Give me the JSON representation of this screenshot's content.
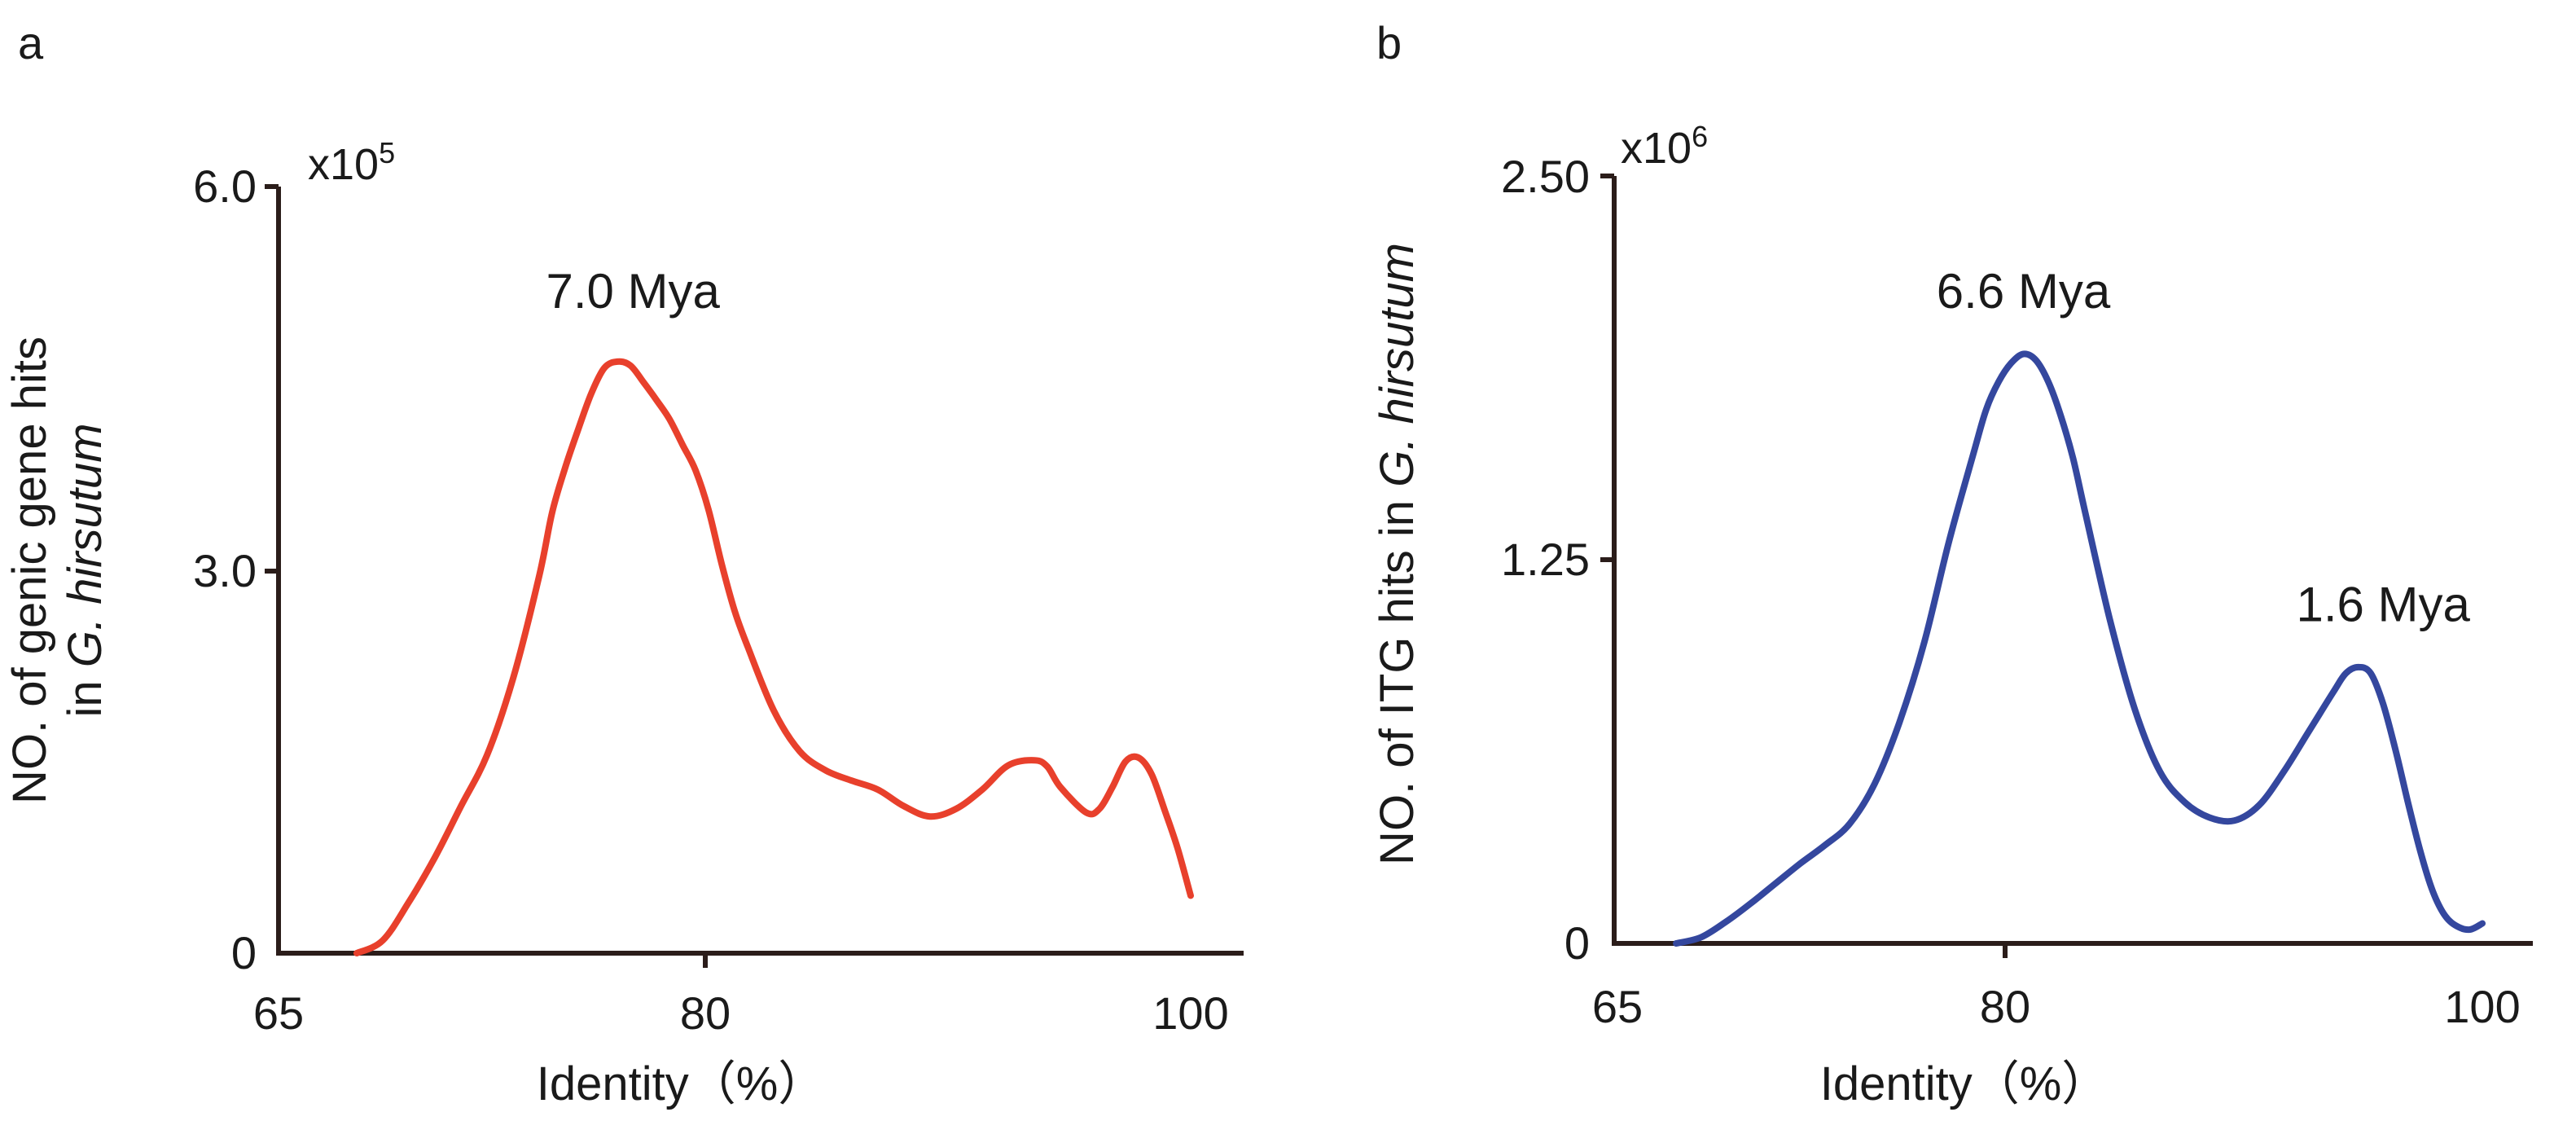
{
  "chart_data": [
    {
      "panel": "a",
      "type": "line",
      "color": "#e8402c",
      "xlabel": "Identity（%）",
      "ylabel": "NO. of  genic gene hits",
      "ylabel_line2_prefix": "in ",
      "ylabel_line2_italic": "G. hirsutum",
      "scale_base": "x10",
      "scale_exp": "5",
      "xlim": [
        65,
        100
      ],
      "ylim": [
        0,
        600000
      ],
      "xticks": [
        {
          "value": 65,
          "label": "65"
        },
        {
          "value": 80,
          "label": "80"
        },
        {
          "value": 100,
          "label": "100"
        }
      ],
      "yticks": [
        {
          "value": 0,
          "label": "0"
        },
        {
          "value": 300000,
          "label": "3.0"
        },
        {
          "value": 600000,
          "label": "6.0"
        }
      ],
      "annotations": [
        {
          "text": "7.0 Mya",
          "x": 78.6,
          "y": 505000
        }
      ],
      "series": [
        {
          "x": [
            68.0,
            69.0,
            70.0,
            71.0,
            72.0,
            73.0,
            74.0,
            75.0,
            75.5,
            76.0,
            76.5,
            77.0,
            77.5,
            78.0,
            78.5,
            79.0,
            79.5,
            80.0,
            80.5,
            81.0,
            81.5,
            82.0,
            82.5,
            83.0,
            84.0,
            85.0,
            86.0,
            87.0,
            88.0,
            89.0,
            90.0,
            91.0,
            92.0,
            93.0,
            94.0,
            94.5,
            95.0,
            96.0,
            96.5,
            97.0,
            97.5,
            98.0,
            98.5,
            99.0,
            99.5,
            100.0
          ],
          "y": [
            0,
            10000,
            40000,
            75000,
            115000,
            155000,
            215000,
            295000,
            345000,
            380000,
            410000,
            438000,
            458000,
            463000,
            460000,
            447000,
            433000,
            418000,
            398000,
            378000,
            347000,
            305000,
            268000,
            240000,
            190000,
            158000,
            143000,
            135000,
            128000,
            115000,
            107000,
            113000,
            128000,
            147000,
            151000,
            146000,
            130000,
            110000,
            113000,
            130000,
            150000,
            153000,
            140000,
            112000,
            82000,
            45000
          ]
        }
      ]
    },
    {
      "panel": "b",
      "type": "line",
      "color": "#34479e",
      "xlabel": "Identity（%）",
      "ylabel_prefix": "NO. of  ITG hits in ",
      "ylabel_italic": "G. hirsutum",
      "scale_base": "x10",
      "scale_exp": "6",
      "xlim": [
        65,
        100
      ],
      "ylim": [
        0,
        2500000
      ],
      "xticks": [
        {
          "value": 65,
          "label": "65"
        },
        {
          "value": 80,
          "label": "80"
        },
        {
          "value": 100,
          "label": "100"
        }
      ],
      "yticks": [
        {
          "value": 0,
          "label": "0"
        },
        {
          "value": 1250000,
          "label": "1.25"
        },
        {
          "value": 2500000,
          "label": "2.50"
        }
      ],
      "annotations": [
        {
          "text": "6.6 Mya",
          "x": 81.5,
          "y": 2070000
        },
        {
          "text": "1.6 Mya",
          "x": 96.0,
          "y": 1050000
        }
      ],
      "series": [
        {
          "x": [
            67.5,
            68.5,
            69.5,
            70.5,
            71.5,
            72.5,
            73.5,
            74.5,
            75.5,
            76.5,
            77.5,
            78.5,
            79.5,
            80.0,
            80.5,
            81.0,
            81.5,
            82.0,
            82.5,
            83.0,
            83.5,
            84.0,
            85.0,
            86.0,
            87.0,
            88.0,
            89.0,
            90.0,
            91.0,
            92.0,
            93.0,
            94.0,
            94.5,
            95.0,
            95.5,
            96.0,
            96.5,
            97.0,
            97.5,
            98.0,
            98.5,
            99.0,
            99.5,
            100.0
          ],
          "y": [
            0,
            20000,
            70000,
            130000,
            195000,
            260000,
            320000,
            390000,
            520000,
            720000,
            980000,
            1310000,
            1600000,
            1740000,
            1830000,
            1890000,
            1920000,
            1900000,
            1830000,
            1720000,
            1580000,
            1400000,
            1050000,
            760000,
            560000,
            460000,
            410000,
            400000,
            450000,
            560000,
            690000,
            820000,
            880000,
            900000,
            880000,
            780000,
            630000,
            460000,
            300000,
            170000,
            90000,
            55000,
            45000,
            65000
          ]
        }
      ]
    }
  ]
}
